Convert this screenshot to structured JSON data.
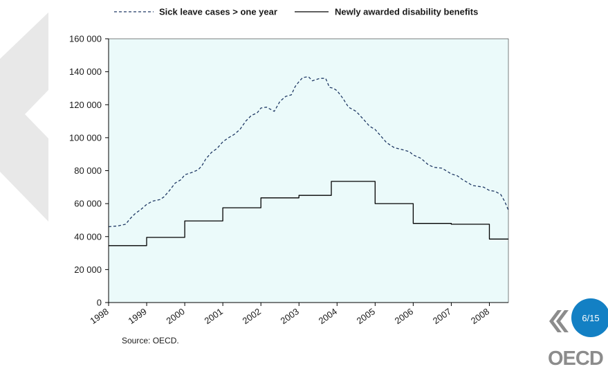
{
  "chart_data": {
    "type": "line",
    "legend": [
      "Sick leave cases > one year",
      "Newly awarded disability benefits"
    ],
    "legend_position": "top",
    "ylim": [
      0,
      160000
    ],
    "yticks": [
      0,
      20000,
      40000,
      60000,
      80000,
      100000,
      120000,
      140000,
      160000
    ],
    "ytick_labels": [
      "0",
      "20 000",
      "40 000",
      "60 000",
      "80 000",
      "100 000",
      "120 000",
      "140 000",
      "160 000"
    ],
    "xlim": [
      1998,
      2008.5
    ],
    "xticks": [
      "1998",
      "1999",
      "2000",
      "2001",
      "2002",
      "2003",
      "2004",
      "2005",
      "2006",
      "2007",
      "2008"
    ],
    "plot_background": "#ebfafa",
    "grid": false,
    "series": [
      {
        "name": "Sick leave cases > one year",
        "style": "dashed",
        "color": "#1f3864",
        "x": [
          1998.0,
          1998.25,
          1998.45,
          1998.55,
          1998.7,
          1998.85,
          1999.0,
          1999.15,
          1999.35,
          1999.45,
          1999.6,
          1999.75,
          1999.9,
          2000.0,
          2000.2,
          2000.35,
          2000.45,
          2000.55,
          2000.7,
          2000.85,
          2001.0,
          2001.15,
          2001.3,
          2001.45,
          2001.6,
          2001.75,
          2001.9,
          2002.0,
          2002.15,
          2002.35,
          2002.5,
          2002.65,
          2002.8,
          2002.9,
          2003.0,
          2003.1,
          2003.25,
          2003.35,
          2003.55,
          2003.7,
          2003.8,
          2003.9,
          2004.0,
          2004.15,
          2004.3,
          2004.5,
          2004.7,
          2004.85,
          2005.0,
          2005.15,
          2005.3,
          2005.5,
          2005.75,
          2005.9,
          2006.0,
          2006.2,
          2006.4,
          2006.55,
          2006.75,
          2006.9,
          2007.0,
          2007.15,
          2007.3,
          2007.45,
          2007.55,
          2007.7,
          2007.85,
          2008.0,
          2008.15,
          2008.3,
          2008.4,
          2008.5
        ],
        "y": [
          46000,
          46500,
          47500,
          50500,
          54000,
          56500,
          59500,
          61500,
          62500,
          64000,
          68000,
          72500,
          74500,
          77500,
          79000,
          80500,
          83000,
          87000,
          91000,
          93500,
          97500,
          100000,
          102000,
          105000,
          110000,
          113500,
          115000,
          118000,
          118500,
          116000,
          122000,
          125000,
          126000,
          131000,
          134000,
          136500,
          137000,
          134500,
          136000,
          136000,
          130500,
          130000,
          128500,
          124000,
          118500,
          116000,
          111000,
          107000,
          105000,
          101000,
          97000,
          94000,
          92500,
          91500,
          89500,
          87500,
          83500,
          82000,
          81500,
          79500,
          78000,
          77000,
          74500,
          72500,
          71000,
          70500,
          70000,
          68000,
          67500,
          65500,
          61500,
          56000
        ]
      },
      {
        "name": "Newly awarded disability benefits",
        "style": "solid",
        "color": "#000000",
        "x": [
          1998.0,
          1999.0,
          1999.0,
          2000.0,
          2000.0,
          2001.0,
          2001.0,
          2002.0,
          2002.0,
          2003.0,
          2003.0,
          2003.85,
          2003.85,
          2005.0,
          2005.0,
          2006.0,
          2006.0,
          2007.0,
          2007.0,
          2008.0,
          2008.0,
          2008.5
        ],
        "y": [
          34500,
          34500,
          39500,
          39500,
          49500,
          49500,
          57500,
          57500,
          63500,
          63500,
          65000,
          65000,
          73500,
          73500,
          60000,
          60000,
          48000,
          48000,
          47500,
          47500,
          38500,
          38500
        ]
      }
    ]
  },
  "source_note": "Source: OECD.",
  "page_indicator": "6/15",
  "logo_text": "OECD"
}
